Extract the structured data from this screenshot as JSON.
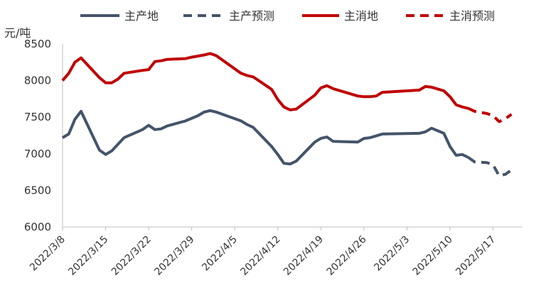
{
  "chart_data": {
    "type": "line",
    "ylabel": "元/吨",
    "ylim": [
      6000,
      8500
    ],
    "yticks": [
      "6000",
      "6500",
      "7000",
      "7500",
      "8000",
      "8500"
    ],
    "x_tick_labels": [
      "2022/3/8",
      "2022/3/15",
      "2022/3/22",
      "2022/3/29",
      "2022/4/5",
      "2022/4/12",
      "2022/4/19",
      "2022/4/26",
      "2022/5/3",
      "2022/5/10",
      "2022/5/17"
    ],
    "grid": false,
    "legend_position": "top",
    "series": [
      {
        "name": "主产地",
        "color": "#44546a",
        "style": "solid",
        "points": [
          [
            "2022/3/8",
            7220
          ],
          [
            "2022/3/9",
            7270
          ],
          [
            "2022/3/10",
            7470
          ],
          [
            "2022/3/11",
            7580
          ],
          [
            "2022/3/14",
            7050
          ],
          [
            "2022/3/15",
            6990
          ],
          [
            "2022/3/16",
            7040
          ],
          [
            "2022/3/18",
            7220
          ],
          [
            "2022/3/21",
            7330
          ],
          [
            "2022/3/22",
            7390
          ],
          [
            "2022/3/23",
            7330
          ],
          [
            "2022/3/24",
            7340
          ],
          [
            "2022/3/25",
            7380
          ],
          [
            "2022/3/28",
            7450
          ],
          [
            "2022/3/30",
            7520
          ],
          [
            "2022/3/31",
            7570
          ],
          [
            "2022/4/1",
            7590
          ],
          [
            "2022/4/2",
            7570
          ],
          [
            "2022/4/6",
            7450
          ],
          [
            "2022/4/7",
            7400
          ],
          [
            "2022/4/8",
            7360
          ],
          [
            "2022/4/11",
            7100
          ],
          [
            "2022/4/12",
            6990
          ],
          [
            "2022/4/13",
            6870
          ],
          [
            "2022/4/14",
            6860
          ],
          [
            "2022/4/15",
            6900
          ],
          [
            "2022/4/18",
            7160
          ],
          [
            "2022/4/19",
            7210
          ],
          [
            "2022/4/20",
            7230
          ],
          [
            "2022/4/21",
            7170
          ],
          [
            "2022/4/25",
            7160
          ],
          [
            "2022/4/26",
            7210
          ],
          [
            "2022/4/27",
            7220
          ],
          [
            "2022/4/29",
            7270
          ],
          [
            "2022/5/5",
            7280
          ],
          [
            "2022/5/6",
            7300
          ],
          [
            "2022/5/7",
            7350
          ],
          [
            "2022/5/9",
            7280
          ],
          [
            "2022/5/10",
            7100
          ],
          [
            "2022/5/11",
            6980
          ],
          [
            "2022/5/12",
            6990
          ],
          [
            "2022/5/13",
            6950
          ]
        ]
      },
      {
        "name": "主产预测",
        "color": "#44546a",
        "style": "dashed",
        "points": [
          [
            "2022/5/13",
            6950
          ],
          [
            "2022/5/14",
            6890
          ],
          [
            "2022/5/16",
            6880
          ],
          [
            "2022/5/17",
            6850
          ],
          [
            "2022/5/18",
            6700
          ],
          [
            "2022/5/19",
            6720
          ],
          [
            "2022/5/20",
            6780
          ]
        ]
      },
      {
        "name": "主消地",
        "color": "#c00000",
        "style": "solid",
        "points": [
          [
            "2022/3/8",
            8000
          ],
          [
            "2022/3/9",
            8100
          ],
          [
            "2022/3/10",
            8250
          ],
          [
            "2022/3/11",
            8310
          ],
          [
            "2022/3/14",
            8040
          ],
          [
            "2022/3/15",
            7970
          ],
          [
            "2022/3/16",
            7970
          ],
          [
            "2022/3/17",
            8020
          ],
          [
            "2022/3/18",
            8100
          ],
          [
            "2022/3/21",
            8140
          ],
          [
            "2022/3/22",
            8150
          ],
          [
            "2022/3/23",
            8260
          ],
          [
            "2022/3/24",
            8270
          ],
          [
            "2022/3/25",
            8290
          ],
          [
            "2022/3/28",
            8300
          ],
          [
            "2022/3/29",
            8320
          ],
          [
            "2022/3/31",
            8350
          ],
          [
            "2022/4/1",
            8370
          ],
          [
            "2022/4/2",
            8340
          ],
          [
            "2022/4/4",
            8220
          ],
          [
            "2022/4/6",
            8100
          ],
          [
            "2022/4/7",
            8070
          ],
          [
            "2022/4/8",
            8050
          ],
          [
            "2022/4/11",
            7880
          ],
          [
            "2022/4/12",
            7740
          ],
          [
            "2022/4/13",
            7640
          ],
          [
            "2022/4/14",
            7600
          ],
          [
            "2022/4/15",
            7610
          ],
          [
            "2022/4/18",
            7800
          ],
          [
            "2022/4/19",
            7900
          ],
          [
            "2022/4/20",
            7930
          ],
          [
            "2022/4/21",
            7890
          ],
          [
            "2022/4/25",
            7790
          ],
          [
            "2022/4/26",
            7780
          ],
          [
            "2022/4/27",
            7780
          ],
          [
            "2022/4/28",
            7790
          ],
          [
            "2022/4/29",
            7840
          ],
          [
            "2022/5/5",
            7870
          ],
          [
            "2022/5/6",
            7920
          ],
          [
            "2022/5/7",
            7910
          ],
          [
            "2022/5/9",
            7860
          ],
          [
            "2022/5/10",
            7780
          ],
          [
            "2022/5/11",
            7670
          ],
          [
            "2022/5/12",
            7640
          ],
          [
            "2022/5/13",
            7620
          ]
        ]
      },
      {
        "name": "主消预测",
        "color": "#c00000",
        "style": "dashed",
        "points": [
          [
            "2022/5/13",
            7620
          ],
          [
            "2022/5/14",
            7580
          ],
          [
            "2022/5/16",
            7550
          ],
          [
            "2022/5/17",
            7520
          ],
          [
            "2022/5/18",
            7440
          ],
          [
            "2022/5/19",
            7480
          ],
          [
            "2022/5/20",
            7540
          ]
        ]
      }
    ]
  }
}
